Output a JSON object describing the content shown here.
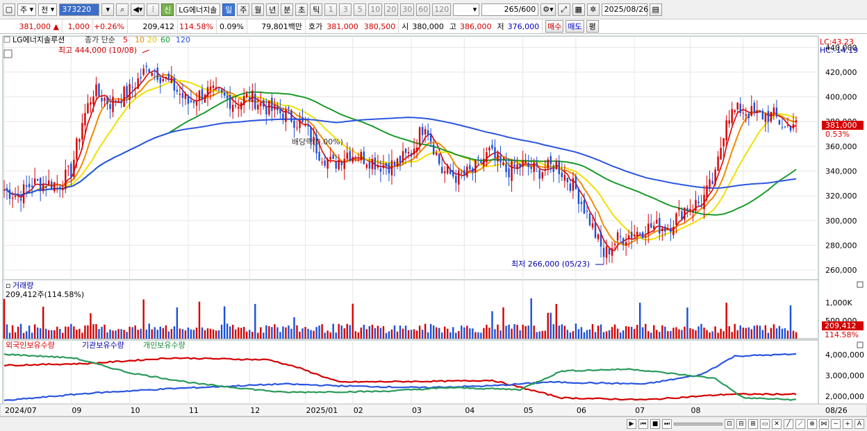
{
  "toolbar": {
    "period": "주",
    "prev": "전",
    "code": "373220",
    "credit": "신",
    "name": "LG에너지솔",
    "tabs": [
      "일",
      "주",
      "월",
      "년",
      "분",
      "초",
      "틱"
    ],
    "numbers": [
      "1",
      "3",
      "5",
      "10",
      "20",
      "30",
      "60",
      "120"
    ],
    "count": "265",
    "total": "/600",
    "date": "2025/08/26"
  },
  "quote": {
    "price": "381,000",
    "change": "1,000",
    "change_pct": "+0.26%",
    "volume": "209,412",
    "volume_ratio": "114.58%",
    "turnover": "0.09%",
    "amount": "79,801백만",
    "bid_label": "호가",
    "bid": "381,000",
    "ask": "380,500",
    "open_label": "시",
    "open": "380,000",
    "high_label": "고",
    "high": "386,000",
    "low_label": "저",
    "low": "376,000",
    "buy": "매수",
    "sell": "매도",
    "eval": "평"
  },
  "price_panel": {
    "legend_name": "LG에너지솔루션",
    "legend_ma": "종가 단순",
    "ma_periods": [
      "5",
      "10",
      "20",
      "60",
      "120"
    ],
    "lc": "LC:43.23",
    "hc": "HC:-14.19",
    "high_note": "최고 444,000 (10/08)",
    "low_note": "최저 266,000 (05/23)",
    "dividend_note": "배당락(0.00%)",
    "current_price": "381,000",
    "current_pct": "0.53%",
    "y_labels": [
      "440,000",
      "420,000",
      "400,000",
      "380,000",
      "360,000",
      "340,000",
      "320,000",
      "300,000",
      "280,000",
      "260,000"
    ]
  },
  "volume_panel": {
    "title": "거래량",
    "value": "209,412주(114.58%)",
    "y_label": "1,000K",
    "y_label2": "500,000",
    "current": "209,412",
    "current_pct": "114.58%"
  },
  "holdings_panel": {
    "foreign": "외국인보유수량",
    "institution": "기관보유수량",
    "individual": "개인보유수량",
    "y_labels": [
      "4,000,000",
      "3,000,000",
      "2,000,000"
    ]
  },
  "x_axis": {
    "labels": [
      "2024/07",
      "09",
      "10",
      "11",
      "12",
      "2025/01",
      "02",
      "03",
      "04",
      "05",
      "06",
      "07",
      "08",
      "08/26"
    ]
  },
  "colors": {
    "up": "#d40000",
    "down": "#1a4fd8",
    "ma5": "#e00000",
    "ma10": "#f08a00",
    "ma20": "#f0e000",
    "ma60": "#1a9a2a",
    "ma120": "#2a55e0"
  },
  "chart_data": {
    "type": "candlestick",
    "start_date": "2024-07-01",
    "end_date": "2025-08-26",
    "points": 285,
    "close_anchors": [
      [
        0,
        325000
      ],
      [
        5,
        320000
      ],
      [
        10,
        330000
      ],
      [
        20,
        330000
      ],
      [
        24,
        340000
      ],
      [
        28,
        380000
      ],
      [
        32,
        405000
      ],
      [
        38,
        395000
      ],
      [
        45,
        405000
      ],
      [
        52,
        425000
      ],
      [
        60,
        410000
      ],
      [
        66,
        395000
      ],
      [
        72,
        405000
      ],
      [
        78,
        400000
      ],
      [
        83,
        395000
      ],
      [
        88,
        400000
      ],
      [
        95,
        390000
      ],
      [
        102,
        385000
      ],
      [
        108,
        375000
      ],
      [
        113,
        355000
      ],
      [
        118,
        345000
      ],
      [
        123,
        355000
      ],
      [
        130,
        350000
      ],
      [
        135,
        345000
      ],
      [
        140,
        345000
      ],
      [
        146,
        355000
      ],
      [
        151,
        380000
      ],
      [
        157,
        340000
      ],
      [
        163,
        335000
      ],
      [
        168,
        340000
      ],
      [
        174,
        355000
      ],
      [
        180,
        340000
      ],
      [
        186,
        345000
      ],
      [
        192,
        340000
      ],
      [
        198,
        345000
      ],
      [
        205,
        325000
      ],
      [
        210,
        300000
      ],
      [
        215,
        272000
      ],
      [
        220,
        285000
      ],
      [
        226,
        290000
      ],
      [
        232,
        295000
      ],
      [
        238,
        295000
      ],
      [
        244,
        310000
      ],
      [
        250,
        315000
      ],
      [
        255,
        335000
      ],
      [
        259,
        385000
      ],
      [
        264,
        390000
      ],
      [
        270,
        385000
      ],
      [
        276,
        385000
      ],
      [
        280,
        375000
      ],
      [
        284,
        381000
      ]
    ],
    "ma_periods": [
      5,
      10,
      20,
      60,
      120
    ],
    "high": {
      "value": 444000,
      "date": "10/08"
    },
    "low": {
      "value": 266000,
      "date": "05/23"
    },
    "ylim": [
      255000,
      448000
    ]
  }
}
